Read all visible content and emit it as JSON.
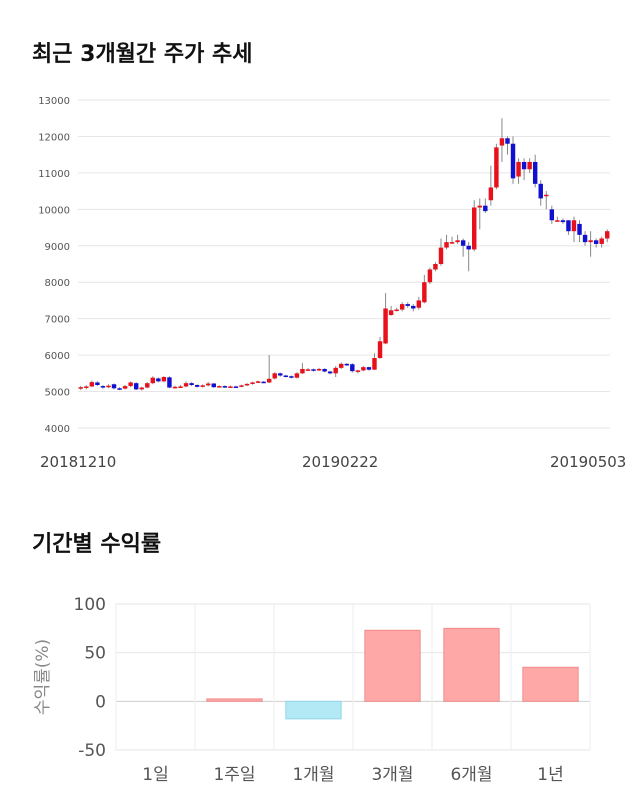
{
  "chart_data": [
    {
      "type": "candlestick",
      "title": "최근 3개월간 주가 추세",
      "yticks": [
        4000,
        5000,
        6000,
        7000,
        8000,
        9000,
        10000,
        11000,
        12000,
        13000
      ],
      "ylim": [
        4000,
        13000
      ],
      "xtick_labels": [
        "20181210",
        "20190222",
        "20190503"
      ],
      "up_color": "#e8101a",
      "down_color": "#1010d0",
      "candles": [
        [
          5080,
          5120,
          5040,
          5160
        ],
        [
          5100,
          5140,
          5060,
          5170
        ],
        [
          5140,
          5260,
          5120,
          5300
        ],
        [
          5250,
          5180,
          5150,
          5280
        ],
        [
          5150,
          5120,
          5080,
          5180
        ],
        [
          5120,
          5160,
          5090,
          5200
        ],
        [
          5200,
          5090,
          5060,
          5220
        ],
        [
          5090,
          5080,
          5040,
          5120
        ],
        [
          5080,
          5150,
          5060,
          5180
        ],
        [
          5150,
          5250,
          5120,
          5280
        ],
        [
          5230,
          5060,
          5040,
          5260
        ],
        [
          5060,
          5110,
          5030,
          5130
        ],
        [
          5110,
          5230,
          5090,
          5260
        ],
        [
          5230,
          5380,
          5200,
          5420
        ],
        [
          5360,
          5280,
          5250,
          5390
        ],
        [
          5280,
          5400,
          5260,
          5420
        ],
        [
          5390,
          5110,
          5090,
          5420
        ],
        [
          5110,
          5130,
          5080,
          5160
        ],
        [
          5130,
          5140,
          5100,
          5180
        ],
        [
          5140,
          5230,
          5120,
          5280
        ],
        [
          5230,
          5180,
          5150,
          5260
        ],
        [
          5180,
          5130,
          5110,
          5200
        ],
        [
          5130,
          5170,
          5110,
          5200
        ],
        [
          5170,
          5220,
          5140,
          5260
        ],
        [
          5220,
          5120,
          5100,
          5240
        ],
        [
          5130,
          5150,
          5110,
          5170
        ],
        [
          5150,
          5120,
          5100,
          5170
        ],
        [
          5120,
          5140,
          5110,
          5170
        ],
        [
          5140,
          5130,
          5110,
          5160
        ],
        [
          5140,
          5170,
          5120,
          5190
        ],
        [
          5170,
          5210,
          5150,
          5230
        ],
        [
          5210,
          5250,
          5190,
          5270
        ],
        [
          5250,
          5280,
          5230,
          5300
        ],
        [
          5270,
          5250,
          5230,
          5290
        ],
        [
          5250,
          5350,
          5230,
          6000
        ],
        [
          5360,
          5500,
          5330,
          5530
        ],
        [
          5500,
          5440,
          5410,
          5520
        ],
        [
          5440,
          5420,
          5390,
          5460
        ],
        [
          5420,
          5380,
          5360,
          5440
        ],
        [
          5380,
          5500,
          5360,
          5530
        ],
        [
          5500,
          5620,
          5480,
          5780
        ],
        [
          5600,
          5610,
          5570,
          5640
        ],
        [
          5610,
          5580,
          5550,
          5630
        ],
        [
          5580,
          5620,
          5560,
          5650
        ],
        [
          5620,
          5550,
          5530,
          5640
        ],
        [
          5550,
          5500,
          5470,
          5570
        ],
        [
          5500,
          5650,
          5400,
          5700
        ],
        [
          5650,
          5760,
          5620,
          5800
        ],
        [
          5760,
          5750,
          5700,
          5780
        ],
        [
          5750,
          5560,
          5520,
          5780
        ],
        [
          5560,
          5580,
          5500,
          5600
        ],
        [
          5580,
          5670,
          5560,
          5700
        ],
        [
          5670,
          5600,
          5570,
          5680
        ],
        [
          5600,
          5920,
          5590,
          6050
        ],
        [
          5920,
          6380,
          5900,
          6500
        ],
        [
          6320,
          7280,
          6300,
          7700
        ],
        [
          7100,
          7230,
          7080,
          7350
        ],
        [
          7230,
          7250,
          7200,
          7300
        ],
        [
          7250,
          7400,
          7200,
          7450
        ],
        [
          7400,
          7350,
          7300,
          7450
        ],
        [
          7350,
          7280,
          7200,
          7400
        ],
        [
          7300,
          7500,
          7250,
          7600
        ],
        [
          7450,
          8000,
          7420,
          8200
        ],
        [
          8000,
          8350,
          7950,
          8400
        ],
        [
          8350,
          8500,
          8300,
          8550
        ],
        [
          8500,
          8950,
          8450,
          9200
        ],
        [
          8950,
          9100,
          8900,
          9300
        ],
        [
          9100,
          9100,
          9050,
          9250
        ],
        [
          9100,
          9150,
          9050,
          9300
        ],
        [
          9150,
          9000,
          8700,
          9200
        ],
        [
          9000,
          8900,
          8300,
          9100
        ],
        [
          8900,
          10050,
          8850,
          10250
        ],
        [
          10050,
          10100,
          9450,
          10300
        ],
        [
          10100,
          9950,
          9900,
          10300
        ],
        [
          10250,
          10600,
          10100,
          11200
        ],
        [
          10600,
          11700,
          10550,
          11800
        ],
        [
          11750,
          11950,
          11300,
          12500
        ],
        [
          11950,
          11800,
          11500,
          12000
        ],
        [
          11800,
          10850,
          10700,
          12000
        ],
        [
          10900,
          11300,
          10700,
          11400
        ],
        [
          11300,
          11100,
          10800,
          11400
        ],
        [
          11100,
          11300,
          11000,
          11400
        ],
        [
          11300,
          10700,
          10600,
          11500
        ],
        [
          10700,
          10300,
          10100,
          10800
        ],
        [
          10400,
          10400,
          10000,
          10500
        ],
        [
          10000,
          9700,
          9600,
          10100
        ],
        [
          9700,
          9700,
          9650,
          9800
        ],
        [
          9700,
          9650,
          9600,
          9750
        ],
        [
          9700,
          9400,
          9300,
          9700
        ],
        [
          9400,
          9700,
          9100,
          9800
        ],
        [
          9600,
          9300,
          9100,
          9700
        ],
        [
          9300,
          9100,
          9000,
          9400
        ],
        [
          9100,
          9150,
          8700,
          9400
        ],
        [
          9150,
          9050,
          8950,
          9200
        ],
        [
          9050,
          9200,
          8950,
          9250
        ],
        [
          9200,
          9400,
          9100,
          9450
        ]
      ]
    },
    {
      "type": "bar",
      "title": "기간별 수익률",
      "ylabel": "수익률(%)",
      "yticks": [
        100,
        50,
        0,
        -50
      ],
      "ylim": [
        -50,
        100
      ],
      "categories": [
        "1일",
        "1주일",
        "1개월",
        "3개월",
        "6개월",
        "1년"
      ],
      "values": [
        0,
        2.5,
        -18,
        73,
        75,
        35
      ],
      "positive_color": "#ffa8a8",
      "negative_color": "#b3e9f5"
    }
  ]
}
